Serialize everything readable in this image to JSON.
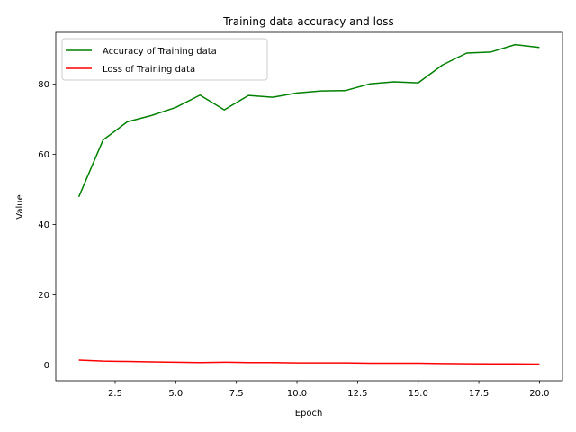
{
  "chart_data": {
    "type": "line",
    "title": "Training data accuracy and loss",
    "xlabel": "Epoch",
    "ylabel": "Value",
    "xlim": [
      0.05,
      20.95
    ],
    "ylim": [
      -4.5,
      94.8
    ],
    "x_ticks": [
      2.5,
      5.0,
      7.5,
      10.0,
      12.5,
      15.0,
      17.5,
      20.0
    ],
    "x_tick_labels": [
      "2.5",
      "5.0",
      "7.5",
      "10.0",
      "12.5",
      "15.0",
      "17.5",
      "20.0"
    ],
    "y_ticks": [
      0,
      20,
      40,
      60,
      80
    ],
    "y_tick_labels": [
      "0",
      "20",
      "40",
      "60",
      "80"
    ],
    "legend_position": "top-left",
    "grid": false,
    "x": [
      1,
      2,
      3,
      4,
      5,
      6,
      7,
      8,
      9,
      10,
      11,
      12,
      13,
      14,
      15,
      16,
      17,
      18,
      19,
      20
    ],
    "series": [
      {
        "name": "Accuracy of Training data",
        "color": "#008000",
        "values": [
          47.9,
          64.1,
          69.3,
          71.1,
          73.4,
          76.9,
          72.7,
          76.8,
          76.3,
          77.5,
          78.1,
          78.2,
          80.1,
          80.7,
          80.4,
          85.5,
          88.9,
          89.2,
          91.3,
          90.5
        ]
      },
      {
        "name": "Loss of Training data",
        "color": "#ff0000",
        "values": [
          1.4,
          1.1,
          1.0,
          0.9,
          0.8,
          0.7,
          0.8,
          0.7,
          0.7,
          0.6,
          0.6,
          0.6,
          0.5,
          0.5,
          0.5,
          0.4,
          0.35,
          0.3,
          0.3,
          0.25
        ]
      }
    ]
  }
}
